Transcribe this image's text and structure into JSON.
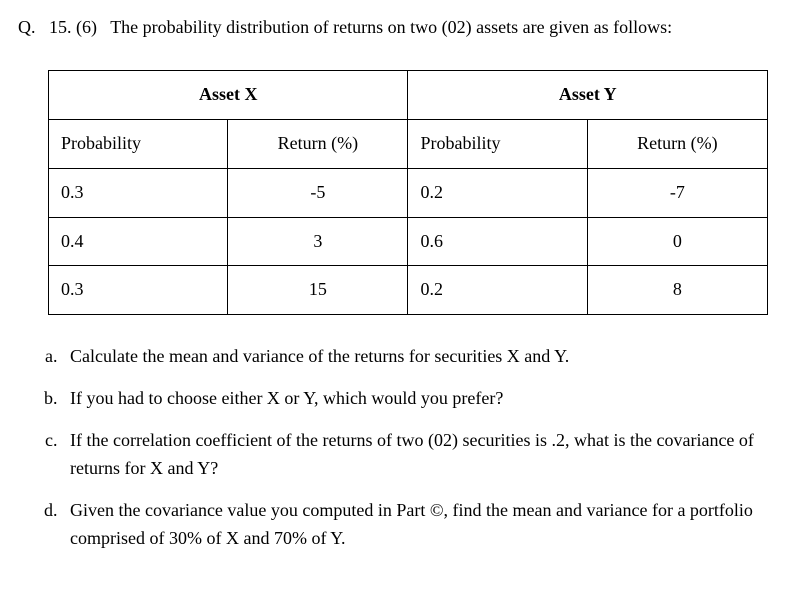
{
  "question": {
    "number_prefix": "Q.",
    "number": "15. (6)",
    "prompt": "The probability distribution of returns on two (02) assets are given as follows:"
  },
  "table": {
    "asset_x_label": "Asset X",
    "asset_y_label": "Asset Y",
    "col_prob": "Probability",
    "col_ret": "Return (%)",
    "rows": [
      {
        "px": "0.3",
        "rx": "-5",
        "py": "0.2",
        "ry": "-7"
      },
      {
        "px": "0.4",
        "rx": "3",
        "py": "0.6",
        "ry": "0"
      },
      {
        "px": "0.3",
        "rx": "15",
        "py": "0.2",
        "ry": "8"
      }
    ]
  },
  "parts": {
    "a": "Calculate the mean and variance of the returns for securities X and Y.",
    "b": "If you had to choose either X or Y, which would you prefer?",
    "c": "If the correlation coefficient of the returns of two (02) securities is .2, what is the covariance of returns for X and Y?",
    "d": "Given the covariance value you computed in Part ©, find the mean and variance for a portfolio comprised of 30% of X and 70% of Y."
  }
}
